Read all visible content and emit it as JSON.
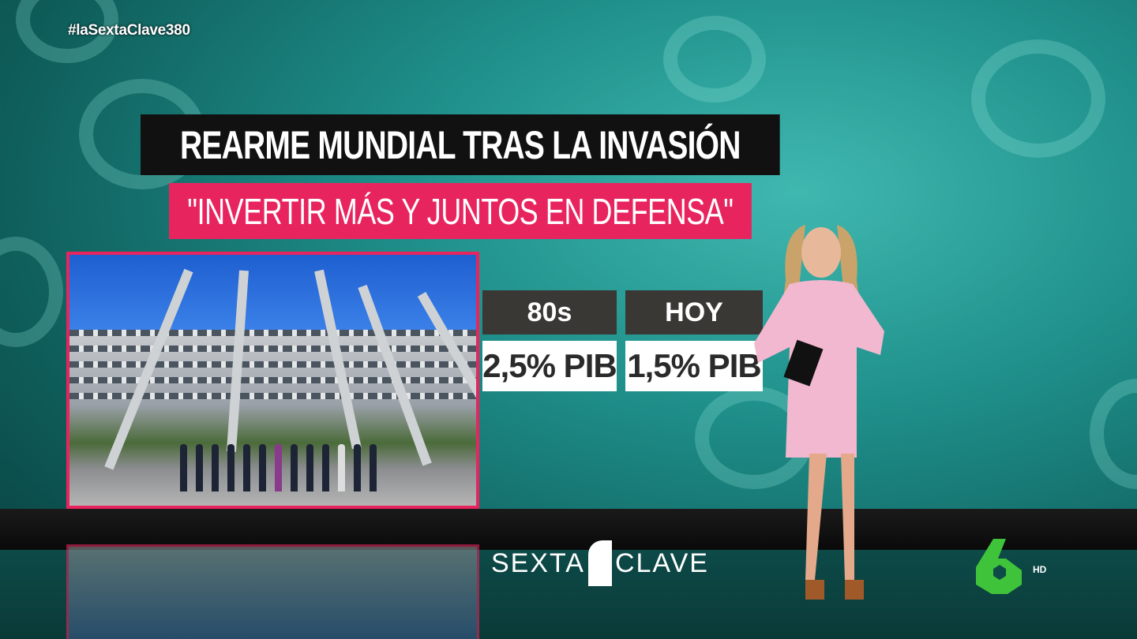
{
  "hashtag": "#laSextaClave380",
  "title": "REARME MUNDIAL TRAS LA INVASIÓN",
  "subtitle": "\"INVERTIR MÁS Y JUNTOS EN DEFENSA\"",
  "stats": [
    {
      "period": "80s",
      "value": "2,5% PIB"
    },
    {
      "period": "HOY",
      "value": "1,5% PIB"
    }
  ],
  "program_logo": {
    "left": "SEXTA",
    "right": "CLAVE"
  },
  "channel": {
    "badge": "HD",
    "color": "#3fc33a"
  },
  "colors": {
    "accent": "#e8245f",
    "background": "#1f8f8a",
    "stat_header": "#3a3835"
  }
}
